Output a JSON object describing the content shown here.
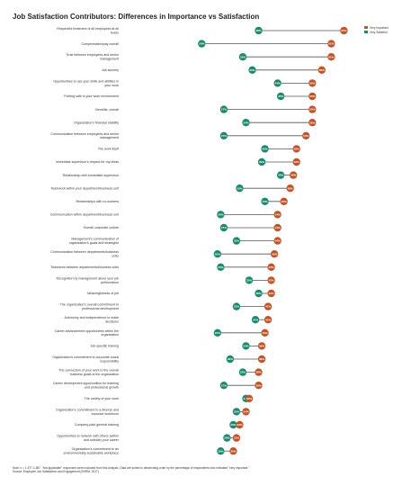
{
  "title": "Job Satisfaction Contributors: Differences in Importance vs Satisfaction",
  "legend": [
    {
      "label": "Very Important",
      "color": "#c0552b"
    },
    {
      "label": "Very Satisfied",
      "color": "#1d8a6e"
    }
  ],
  "note_lines": [
    "Note: n = 1,577-1,587. \"Not applicable\" responses were excluded from this analysis. Data are sorted in descending order by the percentage of respondents who indicated \"very important.\"",
    "Source: Employee Job Satisfaction and Engagement (SHRM, 2017)"
  ],
  "chart_data": {
    "type": "dot-plot",
    "title": "Job Satisfaction Contributors: Differences in Importance vs Satisfaction",
    "series": [
      {
        "name": "Very Important",
        "color": "#c0552b"
      },
      {
        "name": "Very Satisfied",
        "color": "#1d8a6e"
      }
    ],
    "legend_position": "top-right",
    "xlim": [
      0,
      70
    ],
    "rows": [
      {
        "label": [
          "Respectful treatment of all employees at all",
          "levels"
        ],
        "important": 65,
        "satisfied": 38
      },
      {
        "label": [
          "Compensation/pay overall"
        ],
        "important": 61,
        "satisfied": 20
      },
      {
        "label": [
          "Trust between employees and senior",
          "management"
        ],
        "important": 61,
        "satisfied": 33
      },
      {
        "label": [
          "Job security"
        ],
        "important": 58,
        "satisfied": 36
      },
      {
        "label": [
          "Opportunities to use your skills and abilities in",
          "your work"
        ],
        "important": 55,
        "satisfied": 44
      },
      {
        "label": [
          "Feeling safe in your work environment"
        ],
        "important": 55,
        "satisfied": 45
      },
      {
        "label": [
          "Benefits, overall"
        ],
        "important": 55,
        "satisfied": 27
      },
      {
        "label": [
          "Organization's financial stability"
        ],
        "important": 55,
        "satisfied": 34
      },
      {
        "label": [
          "Communication between employees and senior",
          "management"
        ],
        "important": 53,
        "satisfied": 27
      },
      {
        "label": [
          "The work itself"
        ],
        "important": 50,
        "satisfied": 40
      },
      {
        "label": [
          "Immediate supervisor's respect for my ideas"
        ],
        "important": 50,
        "satisfied": 39
      },
      {
        "label": [
          "Relationship with immediate supervisor"
        ],
        "important": 49,
        "satisfied": 45
      },
      {
        "label": [
          "Teamwork within your department/business unit"
        ],
        "important": 48,
        "satisfied": 32
      },
      {
        "label": [
          "Relationships with co-workers"
        ],
        "important": 46,
        "satisfied": 40
      },
      {
        "label": [
          "Communication within department/business unit"
        ],
        "important": 44,
        "satisfied": 26
      },
      {
        "label": [
          "Overall corporate culture"
        ],
        "important": 44,
        "satisfied": 27
      },
      {
        "label": [
          "Management's communication of",
          "organization's goals and strategies"
        ],
        "important": 44,
        "satisfied": 31
      },
      {
        "label": [
          "Communication between departments/business",
          "units"
        ],
        "important": 43,
        "satisfied": 25
      },
      {
        "label": [
          "Teamwork between departments/business units"
        ],
        "important": 42,
        "satisfied": 26
      },
      {
        "label": [
          "Recognition by management about your job",
          "performance"
        ],
        "important": 42,
        "satisfied": 35
      },
      {
        "label": [
          "Meaningfulness of job"
        ],
        "important": 42,
        "satisfied": 38
      },
      {
        "label": [
          "The organization's overall commitment to",
          "professional development"
        ],
        "important": 41,
        "satisfied": 31
      },
      {
        "label": [
          "Autonomy and independence to make",
          "decisions"
        ],
        "important": 41,
        "satisfied": 37
      },
      {
        "label": [
          "Career advancement opportunities within the",
          "organization"
        ],
        "important": 40,
        "satisfied": 25
      },
      {
        "label": [
          "Job-specific training"
        ],
        "important": 39,
        "satisfied": 34
      },
      {
        "label": [
          "Organization's commitment to corporate social",
          "responsibility"
        ],
        "important": 39,
        "satisfied": 29
      },
      {
        "label": [
          "The connection of your work to the overall",
          "business goals of the organization"
        ],
        "important": 38,
        "satisfied": 33
      },
      {
        "label": [
          "Career development opportunities for learning",
          "and professional growth"
        ],
        "important": 38,
        "satisfied": 27
      },
      {
        "label": [
          "The variety of your work"
        ],
        "important": 35,
        "satisfied": 34
      },
      {
        "label": [
          "Organization's commitment to a diverse and",
          "inclusive workforce"
        ],
        "important": 34,
        "satisfied": 31
      },
      {
        "label": [
          "Company-paid general training"
        ],
        "important": 32,
        "satisfied": 30
      },
      {
        "label": [
          "Opportunities to network with others (within",
          "and outside) your career"
        ],
        "important": 31,
        "satisfied": 28
      },
      {
        "label": [
          "Organization's commitment to an",
          "environmentally sustainable workplace"
        ],
        "important": 30,
        "satisfied": 26
      }
    ]
  }
}
